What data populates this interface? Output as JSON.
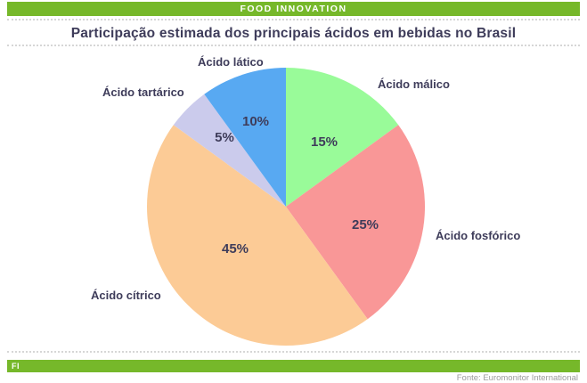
{
  "header": {
    "brand": "FOOD INNOVATION"
  },
  "footer": {
    "badge": "FI",
    "source": "Fonte: Euromonitor International"
  },
  "colors": {
    "brand_green": "#76B82A",
    "title_navy": "#3E3C5A",
    "source_gray": "#9B9B9B",
    "dotted_line": "#D6D6D6"
  },
  "chart_data": {
    "type": "pie",
    "title": "Participação estimada dos principais ácidos em bebidas no Brasil",
    "unit": "%",
    "start_angle_deg": 0,
    "direction": "clockwise",
    "legend_position": "labels-around-pie",
    "slices": [
      {
        "label": "Ácido málico",
        "value": 15,
        "pct_label": "15%",
        "color": "#99FB99"
      },
      {
        "label": "Ácido fosfórico",
        "value": 25,
        "pct_label": "25%",
        "color": "#F99797"
      },
      {
        "label": "Ácido cítrico",
        "value": 45,
        "pct_label": "45%",
        "color": "#FCCB96"
      },
      {
        "label": "Ácido tartárico",
        "value": 5,
        "pct_label": "5%",
        "color": "#CBCBEC"
      },
      {
        "label": "Ácido lático",
        "value": 10,
        "pct_label": "10%",
        "color": "#58A9F2"
      }
    ]
  }
}
